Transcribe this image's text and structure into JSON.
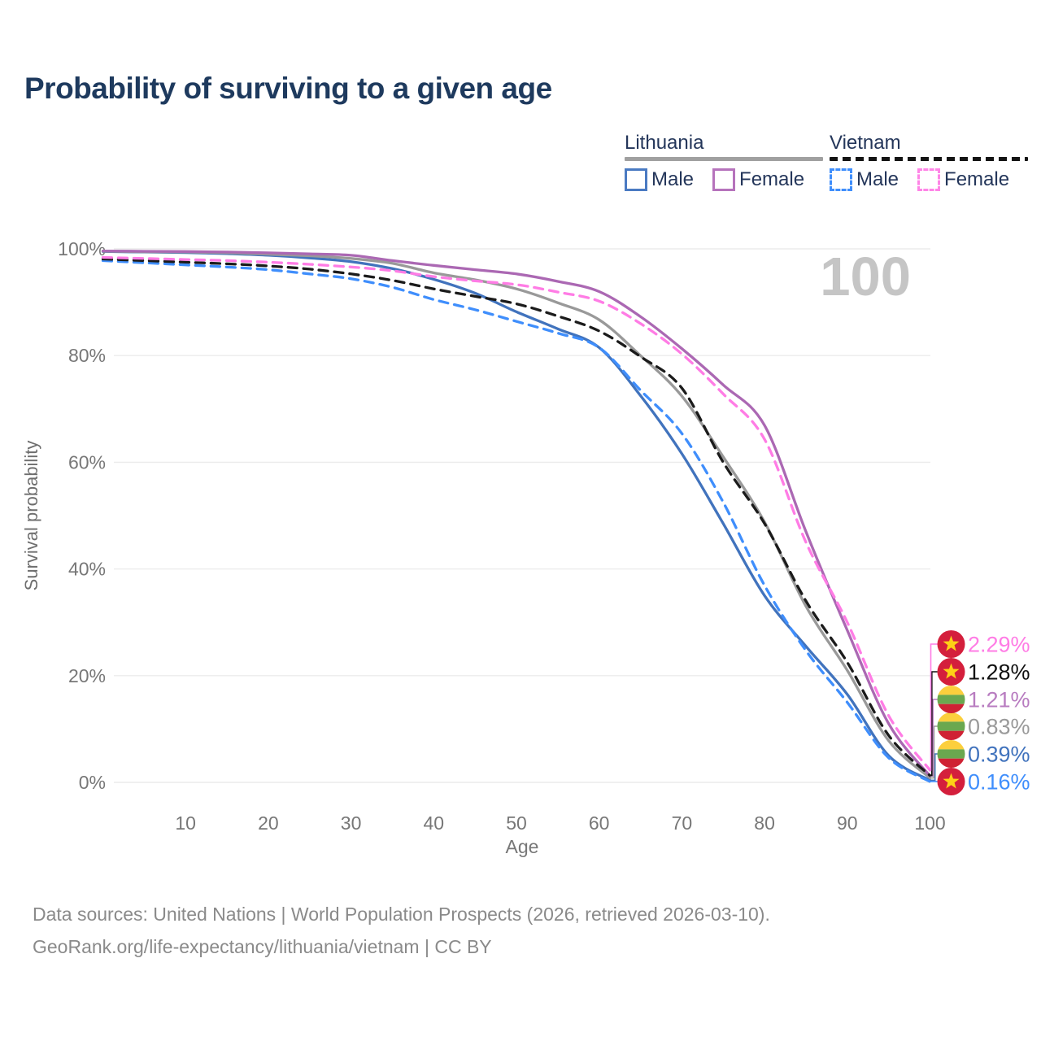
{
  "title": "Probability of surviving to a given age",
  "watermark": "100",
  "legend": {
    "groups": [
      {
        "country": "Lithuania",
        "line_style": "solid",
        "line_color": "#a0a0a0",
        "items": [
          {
            "label": "Male",
            "color": "#4a7ac2",
            "dashed": false
          },
          {
            "label": "Female",
            "color": "#b673bc",
            "dashed": false
          }
        ]
      },
      {
        "country": "Vietnam",
        "line_style": "dashed",
        "line_color": "#141414",
        "items": [
          {
            "label": "Male",
            "color": "#3f8efc",
            "dashed": true
          },
          {
            "label": "Female",
            "color": "#ff85e7",
            "dashed": true
          }
        ]
      }
    ]
  },
  "chart_data": {
    "type": "line",
    "title": "Probability of surviving to a given age",
    "xlabel": "Age",
    "ylabel": "Survival probability",
    "xlim": [
      0,
      100
    ],
    "ylim": [
      0,
      100
    ],
    "grid": "horizontal",
    "x_ticks": [
      10,
      20,
      30,
      40,
      50,
      60,
      70,
      80,
      90,
      100
    ],
    "y_ticks": [
      {
        "value": 0,
        "label": "0%"
      },
      {
        "value": 20,
        "label": "20%"
      },
      {
        "value": 40,
        "label": "40%"
      },
      {
        "value": 60,
        "label": "60%"
      },
      {
        "value": 80,
        "label": "80%"
      },
      {
        "value": 100,
        "label": "100%"
      }
    ],
    "ages": [
      0,
      5,
      10,
      15,
      20,
      25,
      30,
      35,
      40,
      45,
      50,
      55,
      60,
      65,
      70,
      75,
      80,
      85,
      90,
      95,
      100
    ],
    "series": [
      {
        "id": "lithuania-male",
        "name": "Lithuania Male",
        "color": "#4173bd",
        "dashed": false,
        "values": [
          99.5,
          99.4,
          99.3,
          99.1,
          98.8,
          98.3,
          97.6,
          96.3,
          94.3,
          91.7,
          88.2,
          85.0,
          81.5,
          72.5,
          61.6,
          48.5,
          35.0,
          25.5,
          16.5,
          5.0,
          0.39
        ],
        "end_label": "0.39%",
        "label_color": "#4173bd",
        "label_row": 4,
        "flag": "lithuania"
      },
      {
        "id": "lithuania-total",
        "name": "Lithuania Both sexes",
        "color": "#999999",
        "dashed": false,
        "values": [
          99.55,
          99.45,
          99.4,
          99.25,
          99.0,
          98.7,
          98.2,
          97.3,
          95.5,
          94.2,
          92.5,
          89.9,
          86.7,
          80.0,
          72.4,
          61.0,
          48.8,
          33.0,
          21.0,
          7.8,
          0.83
        ],
        "end_label": "0.83%",
        "label_color": "#9a9a9a",
        "label_row": 3,
        "flag": "lithuania"
      },
      {
        "id": "lithuania-female",
        "name": "Lithuania Female",
        "color": "#ab68b3",
        "dashed": false,
        "values": [
          99.6,
          99.55,
          99.5,
          99.4,
          99.25,
          99.05,
          98.8,
          97.8,
          96.9,
          96.1,
          95.3,
          93.9,
          92.0,
          87.3,
          81.3,
          74.5,
          66.9,
          47.0,
          28.5,
          11.0,
          1.21
        ],
        "end_label": "1.21%",
        "label_color": "#b87cc0",
        "label_row": 2,
        "flag": "lithuania"
      },
      {
        "id": "vietnam-male",
        "name": "Vietnam Male",
        "color": "#3f8efc",
        "dashed": true,
        "values": [
          97.8,
          97.4,
          97.0,
          96.6,
          96.1,
          95.3,
          94.4,
          92.8,
          90.5,
          88.6,
          86.4,
          84.2,
          81.5,
          73.5,
          65.4,
          52.5,
          36.9,
          24.7,
          15.0,
          4.6,
          0.16
        ],
        "end_label": "0.16%",
        "label_color": "#3f8efc",
        "label_row": 5,
        "flag": "vietnam"
      },
      {
        "id": "vietnam-total",
        "name": "Vietnam Both sexes",
        "color": "#1b1b1b",
        "dashed": true,
        "values": [
          98.1,
          97.8,
          97.5,
          97.2,
          96.8,
          96.2,
          95.3,
          94.1,
          92.5,
          91.1,
          89.7,
          87.4,
          84.6,
          79.8,
          73.9,
          60.0,
          48.5,
          34.0,
          22.5,
          8.8,
          1.28
        ],
        "end_label": "1.28%",
        "label_color": "#111111",
        "label_row": 1,
        "flag": "vietnam"
      },
      {
        "id": "vietnam-female",
        "name": "Vietnam Female",
        "color": "#ff7ce5",
        "dashed": true,
        "values": [
          98.4,
          98.2,
          98.0,
          97.8,
          97.5,
          97.1,
          96.6,
          95.9,
          94.8,
          94.0,
          93.3,
          91.9,
          90.2,
          86.0,
          80.3,
          72.8,
          64.3,
          45.0,
          30.0,
          12.5,
          2.29
        ],
        "end_label": "2.29%",
        "label_color": "#ff7ce5",
        "label_row": 0,
        "flag": "vietnam"
      }
    ],
    "legend_position": "top-right",
    "annotations": {
      "age_counter": "100"
    }
  },
  "colors": {
    "title": "#1e3a5e",
    "axis_text": "#777777",
    "grid": "#ececec",
    "watermark": "#c5c5c5",
    "flag_vietnam_red": "#d41f3c",
    "flag_vietnam_star": "#fdd116",
    "flag_lithuania_yellow": "#fbcf3d",
    "flag_lithuania_green": "#6aa84f",
    "flag_lithuania_red": "#cf2234"
  },
  "source": {
    "line1": "Data sources: United Nations | World Population Prospects (2026, retrieved 2026-03-10).",
    "line2": "GeoRank.org/life-expectancy/lithuania/vietnam | CC BY"
  }
}
